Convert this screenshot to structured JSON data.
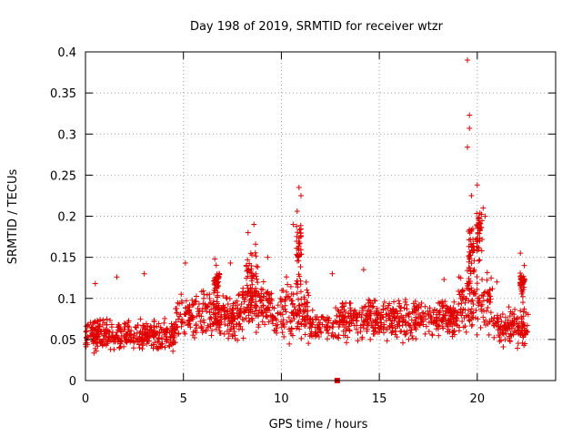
{
  "chart_data": {
    "type": "scatter",
    "title": "Day 198 of 2019, SRMTID for receiver wtzr",
    "xlabel": "GPS time / hours",
    "ylabel": "SRMTID / TECUs",
    "xlim": [
      0,
      24
    ],
    "ylim": [
      0,
      0.4
    ],
    "x_ticks": [
      0,
      5,
      10,
      15,
      20
    ],
    "x_tick_labels": [
      "0",
      "5",
      "10",
      "15",
      "20"
    ],
    "y_ticks": [
      0,
      0.05,
      0.1,
      0.15,
      0.2,
      0.25,
      0.3,
      0.35,
      0.4
    ],
    "y_tick_labels": [
      "0",
      "0.05",
      "0.1",
      "0.15",
      "0.2",
      "0.25",
      "0.3",
      "0.35",
      "0.4"
    ],
    "grid": true,
    "marker": "plus",
    "marker_color": "#e00000",
    "data_x_range": [
      0,
      22.6
    ],
    "baseline_level": 0.07,
    "peaks": [
      {
        "x": 0.5,
        "y": 0.118
      },
      {
        "x": 1.6,
        "y": 0.126
      },
      {
        "x": 3.0,
        "y": 0.13
      },
      {
        "x": 5.1,
        "y": 0.143
      },
      {
        "x": 6.6,
        "y": 0.148
      },
      {
        "x": 7.4,
        "y": 0.143
      },
      {
        "x": 8.3,
        "y": 0.18
      },
      {
        "x": 8.6,
        "y": 0.19
      },
      {
        "x": 9.3,
        "y": 0.15
      },
      {
        "x": 10.6,
        "y": 0.19
      },
      {
        "x": 10.9,
        "y": 0.235
      },
      {
        "x": 11.0,
        "y": 0.225
      },
      {
        "x": 12.6,
        "y": 0.13
      },
      {
        "x": 14.2,
        "y": 0.135
      },
      {
        "x": 18.3,
        "y": 0.123
      },
      {
        "x": 19.5,
        "y": 0.39
      },
      {
        "x": 19.6,
        "y": 0.323
      },
      {
        "x": 19.6,
        "y": 0.307
      },
      {
        "x": 19.5,
        "y": 0.284
      },
      {
        "x": 20.0,
        "y": 0.238
      },
      {
        "x": 19.7,
        "y": 0.225
      },
      {
        "x": 20.3,
        "y": 0.21
      },
      {
        "x": 20.4,
        "y": 0.2
      },
      {
        "x": 21.0,
        "y": 0.12
      },
      {
        "x": 22.2,
        "y": 0.155
      },
      {
        "x": 22.4,
        "y": 0.14
      }
    ],
    "zero_points": [
      {
        "x": 12.85,
        "y": 0.0
      }
    ]
  }
}
